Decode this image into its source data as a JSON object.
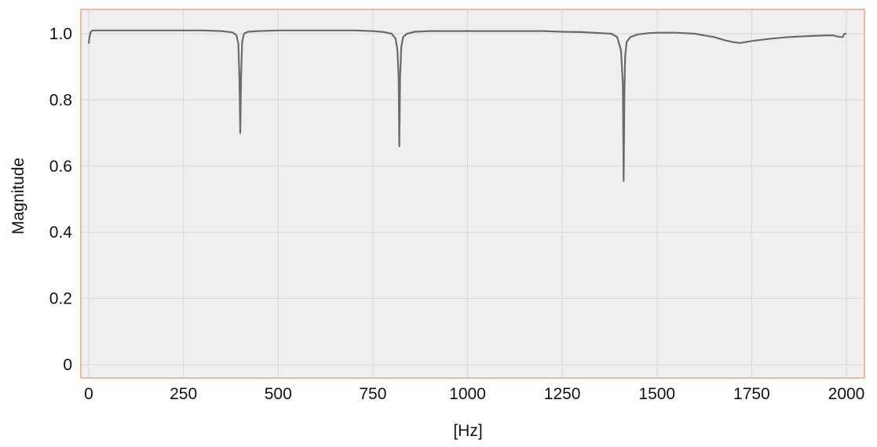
{
  "chart_data": {
    "type": "line",
    "title": "",
    "xlabel": "[Hz]",
    "ylabel": "Magnitude",
    "xlim": [
      0,
      2000
    ],
    "ylim": [
      0,
      1.0
    ],
    "x_ticks": [
      0,
      250,
      500,
      750,
      1000,
      1250,
      1500,
      1750,
      2000
    ],
    "x_tick_labels": [
      "0",
      "250",
      "500",
      "750",
      "1000",
      "1250",
      "1500",
      "1750",
      "2000"
    ],
    "y_ticks": [
      0,
      0.2,
      0.4,
      0.6,
      0.8,
      1.0
    ],
    "y_tick_labels": [
      "0",
      "0.2",
      "0.4",
      "0.6",
      "0.8",
      "1.0"
    ],
    "grid": true,
    "legend": "none",
    "colors": {
      "line": "#6b6b6b",
      "plot_background": "#efefef",
      "plot_border": "#f2b8a4",
      "grid": "#d9d9d9"
    },
    "series": [
      {
        "x": [
          0,
          2,
          5,
          10,
          50,
          100,
          150,
          200,
          250,
          300,
          350,
          380,
          390,
          395,
          398,
          400,
          402,
          405,
          410,
          420,
          450,
          500,
          550,
          600,
          650,
          700,
          750,
          780,
          800,
          810,
          815,
          818,
          820,
          822,
          825,
          830,
          840,
          860,
          900,
          950,
          1000,
          1050,
          1100,
          1150,
          1200,
          1250,
          1300,
          1350,
          1380,
          1395,
          1405,
          1410,
          1412,
          1414,
          1416,
          1420,
          1430,
          1450,
          1480,
          1500,
          1550,
          1600,
          1650,
          1680,
          1700,
          1720,
          1750,
          1800,
          1850,
          1900,
          1950,
          1965,
          1975,
          1985,
          1990,
          1995,
          2000
        ],
        "y": [
          0.97,
          0.99,
          1.005,
          1.01,
          1.01,
          1.01,
          1.01,
          1.01,
          1.01,
          1.01,
          1.008,
          1.004,
          0.995,
          0.97,
          0.86,
          0.7,
          0.86,
          0.975,
          1.0,
          1.006,
          1.008,
          1.01,
          1.01,
          1.01,
          1.01,
          1.01,
          1.008,
          1.005,
          1.0,
          0.985,
          0.95,
          0.87,
          0.66,
          0.87,
          0.96,
          0.99,
          1.0,
          1.006,
          1.008,
          1.008,
          1.008,
          1.008,
          1.008,
          1.008,
          1.008,
          1.006,
          1.005,
          1.002,
          1.0,
          0.99,
          0.95,
          0.85,
          0.555,
          0.82,
          0.93,
          0.975,
          0.99,
          0.998,
          1.002,
          1.003,
          1.003,
          1.0,
          0.99,
          0.98,
          0.975,
          0.972,
          0.978,
          0.985,
          0.99,
          0.993,
          0.995,
          0.995,
          0.992,
          0.99,
          0.99,
          1.0,
          1.0
        ]
      }
    ]
  }
}
